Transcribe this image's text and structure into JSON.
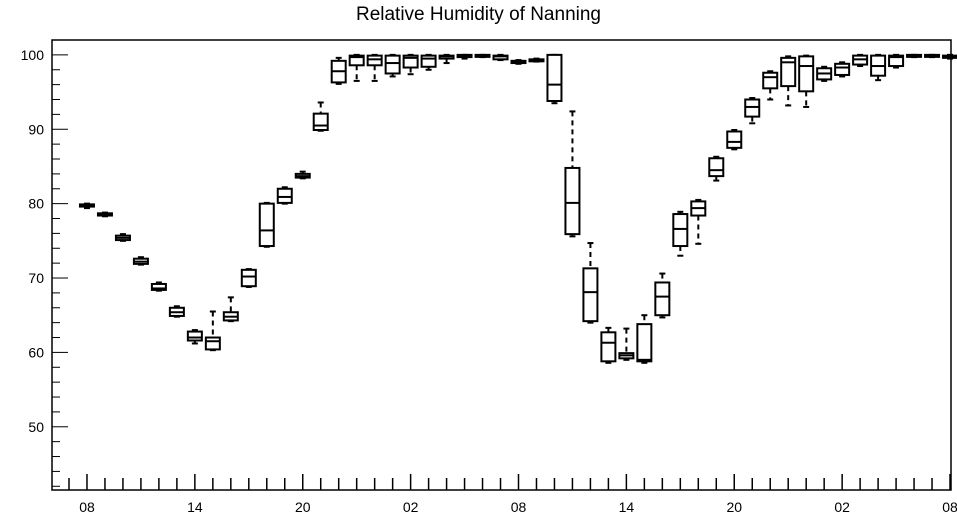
{
  "chart_data": {
    "type": "box",
    "title": "Relative Humidity of Nanning",
    "xlabel": "",
    "ylabel": "",
    "ylim": [
      41.5,
      102
    ],
    "xlim": [
      0,
      49
    ],
    "y_ticks": [
      50,
      60,
      70,
      80,
      90,
      100
    ],
    "x_ticks": [
      {
        "x": 1,
        "label": "08"
      },
      {
        "x": 7,
        "label": "14"
      },
      {
        "x": 13,
        "label": "20"
      },
      {
        "x": 19,
        "label": "02"
      },
      {
        "x": 25,
        "label": "08"
      },
      {
        "x": 31,
        "label": "14"
      },
      {
        "x": 37,
        "label": "20"
      },
      {
        "x": 43,
        "label": "02"
      },
      {
        "x": 49,
        "label": "08"
      }
    ],
    "grid": false,
    "boxes": [
      {
        "x": 1,
        "min": 79.4,
        "q1": 79.6,
        "median": 79.7,
        "q3": 79.9,
        "max": 80.0
      },
      {
        "x": 2,
        "min": 78.3,
        "q1": 78.4,
        "median": 78.5,
        "q3": 78.7,
        "max": 78.8
      },
      {
        "x": 3,
        "min": 75.0,
        "q1": 75.1,
        "median": 75.4,
        "q3": 75.7,
        "max": 75.9
      },
      {
        "x": 4,
        "min": 71.8,
        "q1": 71.9,
        "median": 72.2,
        "q3": 72.6,
        "max": 72.8
      },
      {
        "x": 5,
        "min": 68.3,
        "q1": 68.4,
        "median": 68.6,
        "q3": 69.2,
        "max": 69.4
      },
      {
        "x": 6,
        "min": 64.8,
        "q1": 64.9,
        "median": 65.4,
        "q3": 66.0,
        "max": 66.2
      },
      {
        "x": 7,
        "min": 61.2,
        "q1": 61.6,
        "median": 62.0,
        "q3": 62.8,
        "max": 63.0
      },
      {
        "x": 8,
        "min": 60.3,
        "q1": 60.4,
        "median": 61.5,
        "q3": 62.0,
        "max": 65.5
      },
      {
        "x": 9,
        "min": 64.2,
        "q1": 64.3,
        "median": 64.8,
        "q3": 65.4,
        "max": 67.4
      },
      {
        "x": 10,
        "min": 68.8,
        "q1": 68.9,
        "median": 70.2,
        "q3": 71.1,
        "max": 71.2
      },
      {
        "x": 11,
        "min": 74.2,
        "q1": 74.3,
        "median": 76.4,
        "q3": 80.0,
        "max": 80.1
      },
      {
        "x": 12,
        "min": 80.0,
        "q1": 80.1,
        "median": 80.9,
        "q3": 82.0,
        "max": 82.2
      },
      {
        "x": 13,
        "min": 83.4,
        "q1": 83.5,
        "median": 83.7,
        "q3": 84.0,
        "max": 84.3
      },
      {
        "x": 14,
        "min": 89.8,
        "q1": 89.9,
        "median": 90.5,
        "q3": 92.1,
        "max": 93.6
      },
      {
        "x": 15,
        "min": 96.1,
        "q1": 96.3,
        "median": 97.8,
        "q3": 99.2,
        "max": 99.6
      },
      {
        "x": 16,
        "min": 96.5,
        "q1": 98.6,
        "median": 99.7,
        "q3": 99.9,
        "max": 100.0
      },
      {
        "x": 17,
        "min": 96.5,
        "q1": 98.6,
        "median": 99.4,
        "q3": 99.9,
        "max": 100.0
      },
      {
        "x": 18,
        "min": 97.1,
        "q1": 97.5,
        "median": 98.9,
        "q3": 99.9,
        "max": 100.0
      },
      {
        "x": 19,
        "min": 97.4,
        "q1": 98.3,
        "median": 99.6,
        "q3": 99.9,
        "max": 100.0
      },
      {
        "x": 20,
        "min": 98.0,
        "q1": 98.4,
        "median": 99.5,
        "q3": 99.9,
        "max": 100.0
      },
      {
        "x": 21,
        "min": 98.9,
        "q1": 99.5,
        "median": 99.8,
        "q3": 99.9,
        "max": 100.0
      },
      {
        "x": 22,
        "min": 99.5,
        "q1": 99.7,
        "median": 99.9,
        "q3": 100.0,
        "max": 100.0
      },
      {
        "x": 23,
        "min": 99.7,
        "q1": 99.8,
        "median": 99.9,
        "q3": 100.0,
        "max": 100.0
      },
      {
        "x": 24,
        "min": 99.3,
        "q1": 99.4,
        "median": 99.8,
        "q3": 99.9,
        "max": 100.0
      },
      {
        "x": 25,
        "min": 98.8,
        "q1": 98.9,
        "median": 99.1,
        "q3": 99.2,
        "max": 99.3
      },
      {
        "x": 26,
        "min": 99.1,
        "q1": 99.2,
        "median": 99.3,
        "q3": 99.4,
        "max": 99.5
      },
      {
        "x": 27,
        "min": 93.5,
        "q1": 93.8,
        "median": 96.0,
        "q3": 100.0,
        "max": 100.0
      },
      {
        "x": 28,
        "min": 75.6,
        "q1": 75.9,
        "median": 80.1,
        "q3": 84.8,
        "max": 92.4
      },
      {
        "x": 29,
        "min": 64.0,
        "q1": 64.2,
        "median": 68.1,
        "q3": 71.3,
        "max": 74.7
      },
      {
        "x": 30,
        "min": 58.6,
        "q1": 58.8,
        "median": 61.3,
        "q3": 62.7,
        "max": 63.3
      },
      {
        "x": 31,
        "min": 59.0,
        "q1": 59.2,
        "median": 59.6,
        "q3": 59.9,
        "max": 63.2
      },
      {
        "x": 32,
        "min": 58.6,
        "q1": 58.8,
        "median": 59.0,
        "q3": 63.8,
        "max": 65.0
      },
      {
        "x": 33,
        "min": 64.7,
        "q1": 65.0,
        "median": 67.5,
        "q3": 69.4,
        "max": 70.6
      },
      {
        "x": 34,
        "min": 73.0,
        "q1": 74.3,
        "median": 76.6,
        "q3": 78.6,
        "max": 78.9
      },
      {
        "x": 35,
        "min": 74.6,
        "q1": 78.4,
        "median": 79.4,
        "q3": 80.3,
        "max": 80.5
      },
      {
        "x": 36,
        "min": 83.1,
        "q1": 83.7,
        "median": 84.5,
        "q3": 86.1,
        "max": 86.3
      },
      {
        "x": 37,
        "min": 87.3,
        "q1": 87.5,
        "median": 88.3,
        "q3": 89.7,
        "max": 89.9
      },
      {
        "x": 38,
        "min": 90.8,
        "q1": 91.7,
        "median": 93.0,
        "q3": 94.0,
        "max": 94.2
      },
      {
        "x": 39,
        "min": 94.0,
        "q1": 95.5,
        "median": 97.0,
        "q3": 97.6,
        "max": 97.8
      },
      {
        "x": 40,
        "min": 93.2,
        "q1": 95.8,
        "median": 99.0,
        "q3": 99.6,
        "max": 99.8
      },
      {
        "x": 41,
        "min": 93.0,
        "q1": 95.1,
        "median": 98.5,
        "q3": 99.8,
        "max": 99.9
      },
      {
        "x": 42,
        "min": 96.5,
        "q1": 96.7,
        "median": 97.5,
        "q3": 98.2,
        "max": 98.4
      },
      {
        "x": 43,
        "min": 97.1,
        "q1": 97.3,
        "median": 98.3,
        "q3": 98.8,
        "max": 99.0
      },
      {
        "x": 44,
        "min": 98.5,
        "q1": 98.7,
        "median": 99.4,
        "q3": 99.9,
        "max": 100.0
      },
      {
        "x": 45,
        "min": 96.6,
        "q1": 97.2,
        "median": 98.5,
        "q3": 99.9,
        "max": 100.0
      },
      {
        "x": 46,
        "min": 98.3,
        "q1": 98.5,
        "median": 99.7,
        "q3": 99.9,
        "max": 100.0
      },
      {
        "x": 47,
        "min": 99.7,
        "q1": 99.8,
        "median": 99.9,
        "q3": 100.0,
        "max": 100.0
      },
      {
        "x": 48,
        "min": 99.7,
        "q1": 99.8,
        "median": 99.9,
        "q3": 100.0,
        "max": 100.0
      },
      {
        "x": 49,
        "min": 99.5,
        "q1": 99.6,
        "median": 99.8,
        "q3": 99.9,
        "max": 100.0
      }
    ]
  }
}
